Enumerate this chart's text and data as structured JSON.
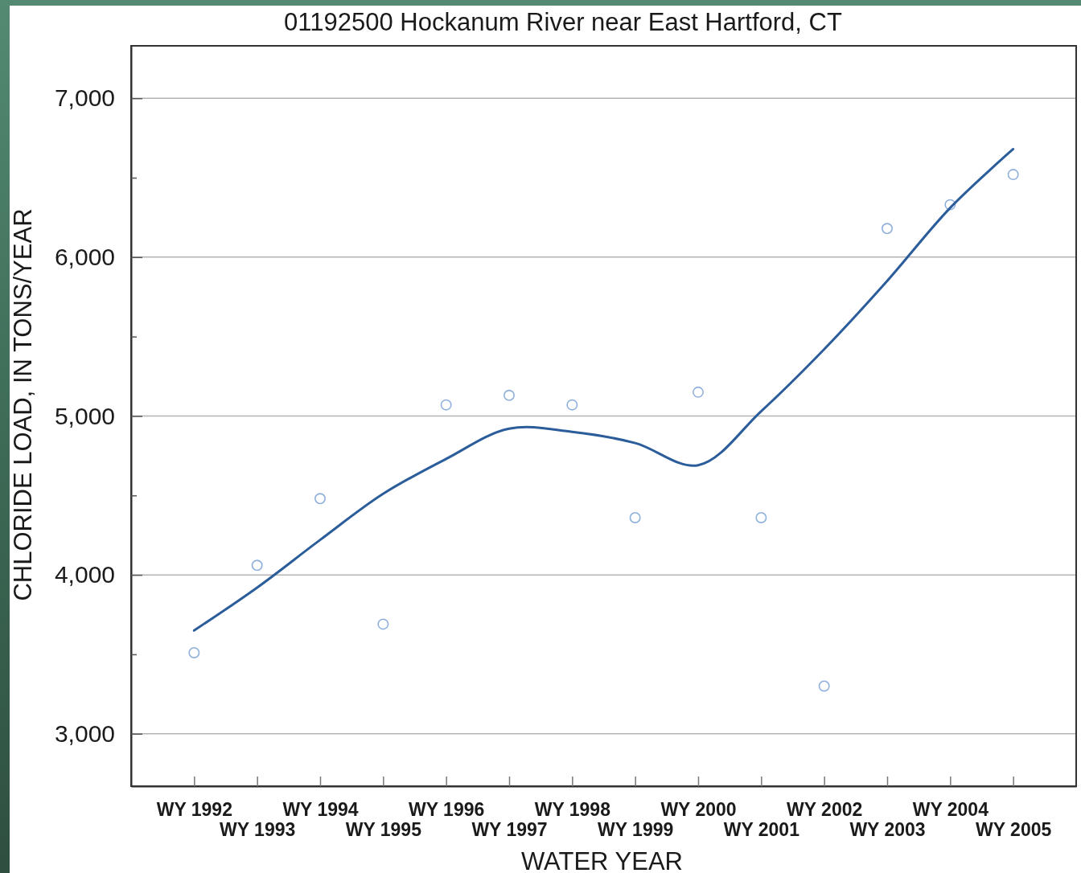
{
  "chart_data": {
    "type": "scatter",
    "title": "01192500 Hockanum River near East Hartford, CT",
    "xlabel": "WATER YEAR",
    "ylabel": "CHLORIDE LOAD, IN TONS/YEAR",
    "categories": [
      "WY 1992",
      "WY 1993",
      "WY 1994",
      "WY 1995",
      "WY 1996",
      "WY 1997",
      "WY 1998",
      "WY 1999",
      "WY 2000",
      "WY 2001",
      "WY 2002",
      "WY 2003",
      "WY 2004",
      "WY 2005"
    ],
    "series": [
      {
        "color": "#8fb0dc",
        "marker": "circle",
        "values": [
          3510,
          4060,
          4480,
          3690,
          5070,
          5130,
          5070,
          4360,
          5150,
          4360,
          3300,
          6180,
          6330,
          6520
        ]
      },
      {
        "type": "line",
        "color": "#2b5d9b",
        "values": [
          3650,
          3920,
          4220,
          4510,
          4730,
          4920,
          4900,
          4830,
          4690,
          5030,
          5420,
          5850,
          6310,
          6680
        ]
      }
    ],
    "ylim": [
      2670,
      7330
    ],
    "yticks": [
      {
        "value": 3000,
        "label": "3,000"
      },
      {
        "value": 3500,
        "label": null
      },
      {
        "value": 4000,
        "label": "4,000"
      },
      {
        "value": 4500,
        "label": null
      },
      {
        "value": 5000,
        "label": "5,000"
      },
      {
        "value": 5500,
        "label": null
      },
      {
        "value": 6000,
        "label": "6,000"
      },
      {
        "value": 6500,
        "label": null
      },
      {
        "value": 7000,
        "label": "7,000"
      }
    ],
    "grid": "y"
  }
}
